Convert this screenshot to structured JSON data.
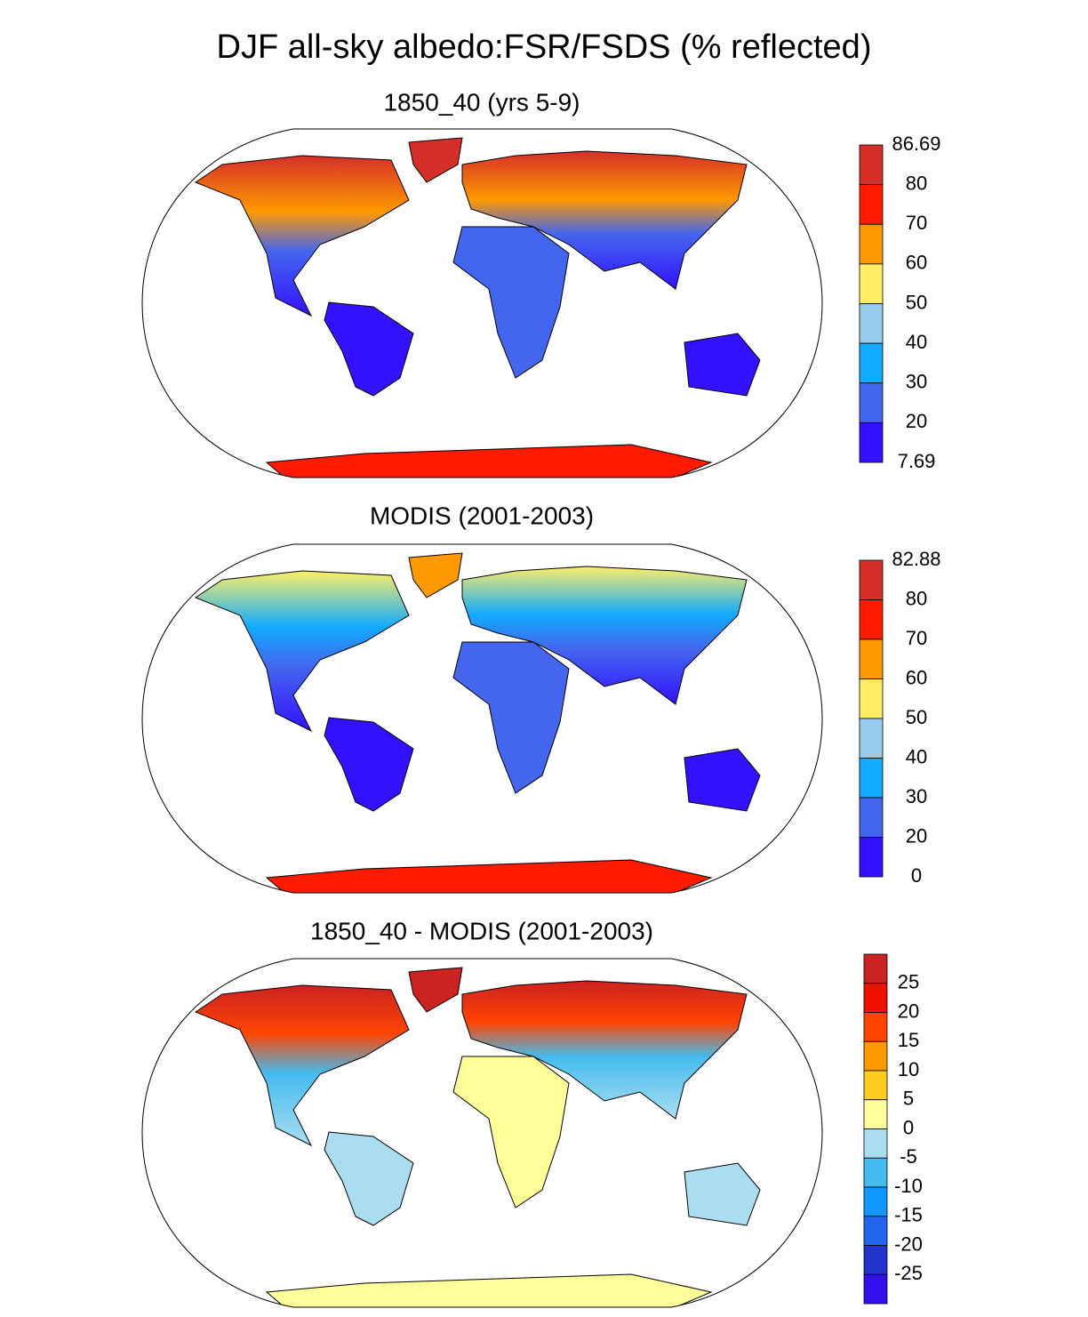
{
  "title": "DJF all-sky albedo:FSR/FSDS (% reflected)",
  "panels": [
    {
      "title": "1850_40 (yrs 5-9)",
      "colorbar": {
        "labels": [
          "86.69",
          "80",
          "70",
          "60",
          "50",
          "40",
          "30",
          "20",
          "7.69"
        ],
        "colors": [
          "#d62f2a",
          "#ff1a00",
          "#ff9900",
          "#ffee66",
          "#99ccee",
          "#11aaff",
          "#4466ee",
          "#3311ff"
        ]
      }
    },
    {
      "title": "MODIS (2001-2003)",
      "colorbar": {
        "labels": [
          "82.88",
          "80",
          "70",
          "60",
          "50",
          "40",
          "30",
          "20",
          "0"
        ],
        "colors": [
          "#d62f2a",
          "#ff1a00",
          "#ff9900",
          "#ffee66",
          "#99ccee",
          "#11aaff",
          "#4466ee",
          "#3311ff"
        ]
      }
    },
    {
      "title": "1850_40 - MODIS (2001-2003)",
      "colorbar": {
        "labels": [
          "25",
          "20",
          "15",
          "10",
          "5",
          "0",
          "-5",
          "-10",
          "-15",
          "-20",
          "-25"
        ],
        "colors": [
          "#cc2222",
          "#ee1100",
          "#ff4400",
          "#ff9900",
          "#ffcc22",
          "#ffff99",
          "#aaddf0",
          "#44bbee",
          "#1199ff",
          "#2266ee",
          "#2233cc",
          "#3311ee"
        ]
      }
    }
  ]
}
